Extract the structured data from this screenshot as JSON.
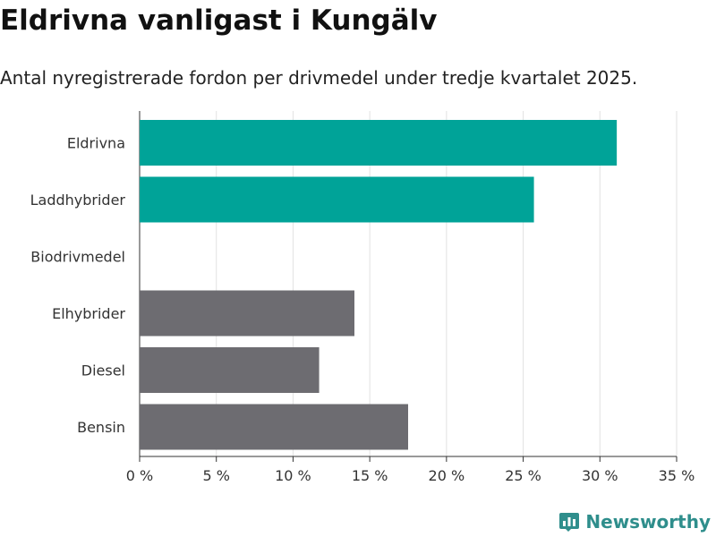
{
  "title": "Eldrivna vanligast i Kungälv",
  "subtitle": "Antal nyregistrerade fordon per drivmedel under tredje kvartalet 2025.",
  "brand": {
    "name": "Newsworthy",
    "icon": "newsworthy-logo-icon"
  },
  "colors": {
    "highlight": "#00a398",
    "default": "#6d6c71",
    "brand": "#2f8e8c"
  },
  "chart_data": {
    "type": "bar",
    "orientation": "horizontal",
    "categories": [
      "Eldrivna",
      "Laddhybrider",
      "Biodrivmedel",
      "Elhybrider",
      "Diesel",
      "Bensin"
    ],
    "values": [
      31.1,
      25.7,
      0,
      14.0,
      11.7,
      17.5
    ],
    "highlighted": [
      true,
      true,
      false,
      false,
      false,
      false
    ],
    "xlim": [
      0,
      35
    ],
    "ticks": [
      0,
      5,
      10,
      15,
      20,
      25,
      30,
      35
    ],
    "tick_labels": [
      "0 %",
      "5 %",
      "10 %",
      "15 %",
      "20 %",
      "25 %",
      "30 %",
      "35 %"
    ],
    "grid": true,
    "legend": "none"
  }
}
